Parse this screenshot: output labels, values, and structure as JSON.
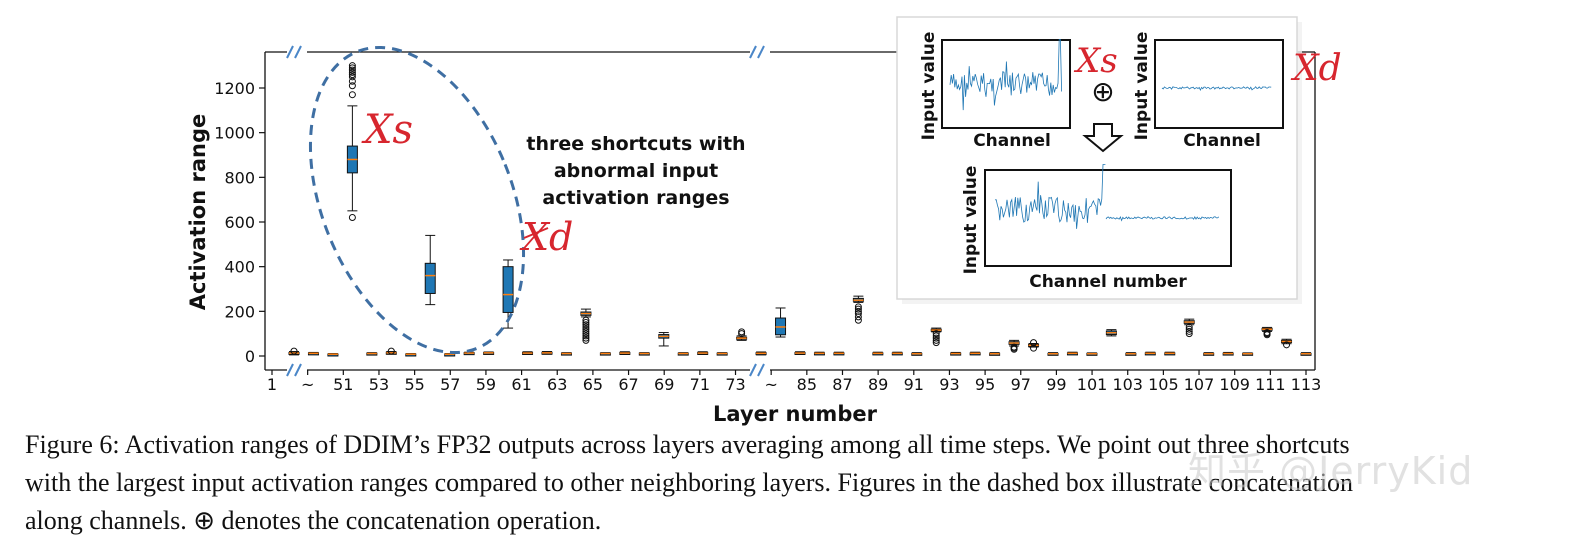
{
  "chart_data": {
    "type": "box",
    "xlabel": "Layer number",
    "ylabel": "Activation range",
    "ylim": [
      -60,
      1340
    ],
    "yticks": [
      0,
      200,
      400,
      600,
      800,
      1000,
      1200
    ],
    "xtick_labels": [
      "1",
      "~",
      "51",
      "53",
      "55",
      "57",
      "59",
      "61",
      "63",
      "65",
      "67",
      "69",
      "71",
      "73",
      "~",
      "85",
      "87",
      "89",
      "91",
      "93",
      "95",
      "97",
      "99",
      "101",
      "103",
      "105",
      "107",
      "109",
      "111",
      "113"
    ],
    "boxes": [
      {
        "layer": "1",
        "low": 5,
        "q1": 10,
        "median": 13,
        "q3": 16,
        "high": 20,
        "outliers": [
          22
        ]
      },
      {
        "layer": "51",
        "low": 7,
        "q1": 10,
        "median": 12,
        "q3": 14,
        "high": 16,
        "outliers": []
      },
      {
        "layer": "52",
        "low": 3,
        "q1": 6,
        "median": 8,
        "q3": 9,
        "high": 11,
        "outliers": []
      },
      {
        "layer": "53",
        "low": 650,
        "q1": 820,
        "median": 880,
        "q3": 940,
        "high": 1120,
        "outliers": [
          620,
          1170,
          1210,
          1230,
          1250,
          1260,
          1270,
          1280,
          1290,
          1300
        ]
      },
      {
        "layer": "54",
        "low": 6,
        "q1": 9,
        "median": 11,
        "q3": 13,
        "high": 15,
        "outliers": []
      },
      {
        "layer": "55",
        "low": 8,
        "q1": 11,
        "median": 14,
        "q3": 17,
        "high": 20,
        "outliers": [
          22
        ]
      },
      {
        "layer": "56",
        "low": 3,
        "q1": 6,
        "median": 8,
        "q3": 9,
        "high": 11,
        "outliers": []
      },
      {
        "layer": "57",
        "low": 230,
        "q1": 280,
        "median": 360,
        "q3": 415,
        "high": 540,
        "outliers": []
      },
      {
        "layer": "58",
        "low": 3,
        "q1": 6,
        "median": 8,
        "q3": 9,
        "high": 11,
        "outliers": []
      },
      {
        "layer": "59",
        "low": 8,
        "q1": 11,
        "median": 13,
        "q3": 15,
        "high": 17,
        "outliers": []
      },
      {
        "layer": "60",
        "low": 8,
        "q1": 12,
        "median": 14,
        "q3": 16,
        "high": 18,
        "outliers": []
      },
      {
        "layer": "61",
        "low": 125,
        "q1": 195,
        "median": 275,
        "q3": 400,
        "high": 430,
        "outliers": []
      },
      {
        "layer": "62",
        "low": 7,
        "q1": 10,
        "median": 13,
        "q3": 16,
        "high": 19,
        "outliers": []
      },
      {
        "layer": "63",
        "low": 8,
        "q1": 11,
        "median": 14,
        "q3": 17,
        "high": 20,
        "outliers": []
      },
      {
        "layer": "64",
        "low": 6,
        "q1": 9,
        "median": 11,
        "q3": 13,
        "high": 15,
        "outliers": []
      },
      {
        "layer": "65",
        "low": 175,
        "q1": 182,
        "median": 190,
        "q3": 197,
        "high": 210,
        "outliers": [
          70,
          80,
          90,
          100,
          110,
          120,
          130,
          140,
          150,
          160
        ]
      },
      {
        "layer": "66",
        "low": 6,
        "q1": 9,
        "median": 11,
        "q3": 13,
        "high": 15,
        "outliers": []
      },
      {
        "layer": "67",
        "low": 7,
        "q1": 10,
        "median": 13,
        "q3": 16,
        "high": 19,
        "outliers": []
      },
      {
        "layer": "68",
        "low": 6,
        "q1": 9,
        "median": 11,
        "q3": 13,
        "high": 15,
        "outliers": []
      },
      {
        "layer": "69",
        "low": 45,
        "q1": 80,
        "median": 88,
        "q3": 96,
        "high": 105,
        "outliers": []
      },
      {
        "layer": "70",
        "low": 6,
        "q1": 9,
        "median": 11,
        "q3": 13,
        "high": 15,
        "outliers": []
      },
      {
        "layer": "71",
        "low": 7,
        "q1": 10,
        "median": 13,
        "q3": 16,
        "high": 19,
        "outliers": []
      },
      {
        "layer": "72",
        "low": 6,
        "q1": 9,
        "median": 11,
        "q3": 13,
        "high": 15,
        "outliers": []
      },
      {
        "layer": "73",
        "low": 70,
        "q1": 76,
        "median": 80,
        "q3": 84,
        "high": 90,
        "outliers": [
          100,
          108
        ]
      },
      {
        "layer": "85",
        "low": 5,
        "q1": 9,
        "median": 12,
        "q3": 15,
        "high": 18,
        "outliers": []
      },
      {
        "layer": "86",
        "low": 85,
        "q1": 95,
        "median": 130,
        "q3": 170,
        "high": 215,
        "outliers": []
      },
      {
        "layer": "87",
        "low": 7,
        "q1": 10,
        "median": 13,
        "q3": 16,
        "high": 19,
        "outliers": []
      },
      {
        "layer": "88",
        "low": 6,
        "q1": 9,
        "median": 12,
        "q3": 14,
        "high": 17,
        "outliers": []
      },
      {
        "layer": "89",
        "low": 6,
        "q1": 9,
        "median": 12,
        "q3": 14,
        "high": 17,
        "outliers": []
      },
      {
        "layer": "90",
        "low": 240,
        "q1": 245,
        "median": 250,
        "q3": 258,
        "high": 268,
        "outliers": [
          160,
          175,
          190,
          200,
          210,
          220
        ]
      },
      {
        "layer": "91",
        "low": 6,
        "q1": 9,
        "median": 12,
        "q3": 14,
        "high": 17,
        "outliers": []
      },
      {
        "layer": "92",
        "low": 6,
        "q1": 9,
        "median": 12,
        "q3": 14,
        "high": 17,
        "outliers": []
      },
      {
        "layer": "93",
        "low": 5,
        "q1": 8,
        "median": 10,
        "q3": 12,
        "high": 15,
        "outliers": []
      },
      {
        "layer": "94",
        "low": 108,
        "q1": 112,
        "median": 116,
        "q3": 120,
        "high": 125,
        "outliers": [
          60,
          70,
          80,
          90,
          100
        ]
      },
      {
        "layer": "95",
        "low": 5,
        "q1": 8,
        "median": 11,
        "q3": 13,
        "high": 16,
        "outliers": []
      },
      {
        "layer": "96",
        "low": 6,
        "q1": 9,
        "median": 12,
        "q3": 14,
        "high": 17,
        "outliers": []
      },
      {
        "layer": "97",
        "low": 5,
        "q1": 8,
        "median": 10,
        "q3": 12,
        "high": 15,
        "outliers": []
      },
      {
        "layer": "98",
        "low": 45,
        "q1": 52,
        "median": 58,
        "q3": 64,
        "high": 70,
        "outliers": [
          30,
          35,
          40
        ]
      },
      {
        "layer": "99",
        "low": 40,
        "q1": 45,
        "median": 48,
        "q3": 52,
        "high": 56,
        "outliers": [
          35,
          60
        ]
      },
      {
        "layer": "100",
        "low": 5,
        "q1": 8,
        "median": 10,
        "q3": 12,
        "high": 15,
        "outliers": []
      },
      {
        "layer": "101",
        "low": 6,
        "q1": 9,
        "median": 12,
        "q3": 14,
        "high": 17,
        "outliers": []
      },
      {
        "layer": "102",
        "low": 5,
        "q1": 8,
        "median": 10,
        "q3": 12,
        "high": 14,
        "outliers": []
      },
      {
        "layer": "103",
        "low": 90,
        "q1": 96,
        "median": 104,
        "q3": 112,
        "high": 118,
        "outliers": []
      },
      {
        "layer": "104",
        "low": 5,
        "q1": 8,
        "median": 10,
        "q3": 12,
        "high": 15,
        "outliers": []
      },
      {
        "layer": "105",
        "low": 6,
        "q1": 9,
        "median": 12,
        "q3": 14,
        "high": 17,
        "outliers": []
      },
      {
        "layer": "106",
        "low": 6,
        "q1": 9,
        "median": 12,
        "q3": 14,
        "high": 17,
        "outliers": []
      },
      {
        "layer": "107",
        "low": 140,
        "q1": 146,
        "median": 152,
        "q3": 158,
        "high": 165,
        "outliers": [
          100,
          110,
          120,
          130
        ]
      },
      {
        "layer": "108",
        "low": 5,
        "q1": 8,
        "median": 10,
        "q3": 12,
        "high": 15,
        "outliers": []
      },
      {
        "layer": "109",
        "low": 6,
        "q1": 9,
        "median": 11,
        "q3": 13,
        "high": 16,
        "outliers": []
      },
      {
        "layer": "110",
        "low": 5,
        "q1": 8,
        "median": 10,
        "q3": 12,
        "high": 14,
        "outliers": []
      },
      {
        "layer": "111",
        "low": 110,
        "q1": 116,
        "median": 120,
        "q3": 124,
        "high": 128,
        "outliers": [
          95,
          100,
          105
        ]
      },
      {
        "layer": "112",
        "low": 55,
        "q1": 60,
        "median": 65,
        "q3": 70,
        "high": 75,
        "outliers": [
          50
        ]
      },
      {
        "layer": "113",
        "low": 5,
        "q1": 8,
        "median": 10,
        "q3": 12,
        "high": 15,
        "outliers": []
      }
    ],
    "annotation": [
      "three shortcuts with",
      "abnormal input",
      "activation ranges"
    ],
    "handwritten": {
      "xs": "Xs",
      "xd": "Xd"
    },
    "inset": {
      "panel_a": {
        "xlabel": "Channel",
        "ylabel": "Input value"
      },
      "panel_b": {
        "xlabel": "Channel",
        "ylabel": "Input value"
      },
      "panel_c": {
        "xlabel": "Channel number",
        "ylabel": "Input value"
      },
      "operator": "⊕"
    },
    "colors": {
      "box_fill": "#1f77b4",
      "median": "#ff7f0e",
      "ellipse": "#3f6fa3",
      "handwriting": "#d7262e",
      "break_mark": "#4a86c8"
    }
  },
  "caption": {
    "line1": "Figure 6: Activation ranges of DDIM’s FP32 outputs across layers averaging among all time steps. We point out three shortcuts",
    "line2": "with the largest input activation ranges compared to other neighboring layers. Figures in the dashed box illustrate concatenation",
    "line3": "along channels. ⊕ denotes the concatenation operation."
  },
  "watermark": "知乎 @JerryKid"
}
